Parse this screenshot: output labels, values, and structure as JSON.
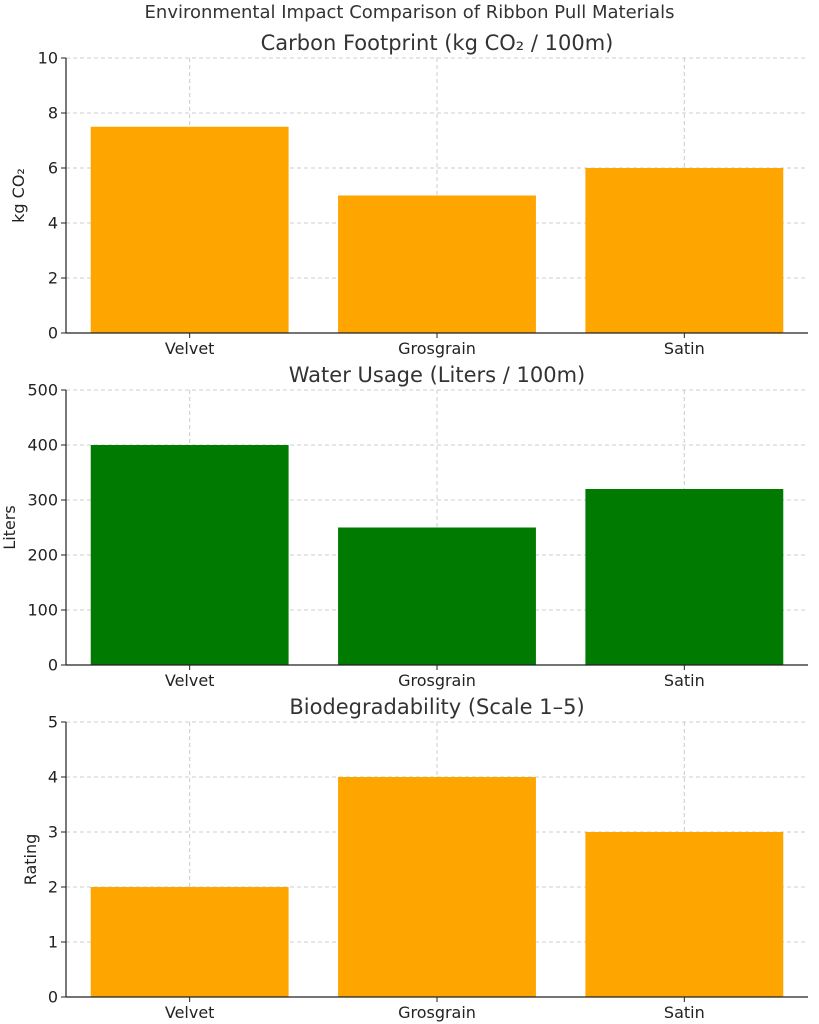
{
  "figure": {
    "title": "Environmental Impact Comparison of Ribbon Pull Materials"
  },
  "chart_data": [
    {
      "type": "bar",
      "title": "Carbon Footprint (kg CO₂ / 100m)",
      "ylabel": "kg CO₂",
      "xlabel": "",
      "categories": [
        "Velvet",
        "Grosgrain",
        "Satin"
      ],
      "values": [
        7.5,
        5,
        6
      ],
      "ylim": [
        0,
        10
      ],
      "yticks": [
        0,
        2,
        4,
        6,
        8,
        10
      ],
      "color": "#FFA500",
      "grid": true
    },
    {
      "type": "bar",
      "title": "Water Usage (Liters / 100m)",
      "ylabel": "Liters",
      "xlabel": "",
      "categories": [
        "Velvet",
        "Grosgrain",
        "Satin"
      ],
      "values": [
        400,
        250,
        320
      ],
      "ylim": [
        0,
        500
      ],
      "yticks": [
        0,
        100,
        200,
        300,
        400,
        500
      ],
      "color": "#007A00",
      "grid": true
    },
    {
      "type": "bar",
      "title": "Biodegradability (Scale 1–5)",
      "ylabel": "Rating",
      "xlabel": "",
      "categories": [
        "Velvet",
        "Grosgrain",
        "Satin"
      ],
      "values": [
        2,
        4,
        3
      ],
      "ylim": [
        0,
        5
      ],
      "yticks": [
        0,
        1,
        2,
        3,
        4,
        5
      ],
      "color": "#FFA500",
      "grid": true
    }
  ]
}
